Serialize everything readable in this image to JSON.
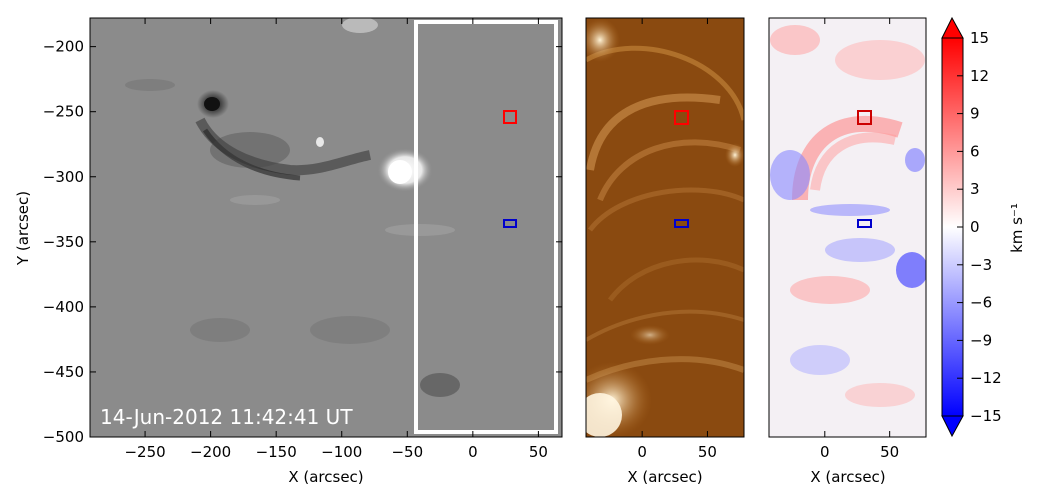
{
  "panel1": {
    "timestamp": "14-Jun-2012 11:42:41 UT",
    "xlabel": "X (arcsec)",
    "ylabel": "Y (arcsec)",
    "xticks": [
      "−250",
      "−200",
      "−150",
      "−100",
      "−50",
      "0",
      "50"
    ],
    "yticks": [
      "−200",
      "−250",
      "−300",
      "−350",
      "−400",
      "−450",
      "−500"
    ],
    "xrange": [
      -292,
      68
    ],
    "yrange": [
      -500,
      -178
    ]
  },
  "panel2": {
    "xlabel": "X (arcsec)",
    "xticks": [
      "0",
      "50"
    ],
    "xrange": [
      -43,
      78
    ]
  },
  "panel3": {
    "xlabel": "X (arcsec)",
    "xticks": [
      "0",
      "50"
    ],
    "xrange": [
      -43,
      78
    ]
  },
  "colorbar": {
    "label": "km s⁻¹",
    "ticks": [
      "15",
      "12",
      "9",
      "6",
      "3",
      "0",
      "−3",
      "−6",
      "−9",
      "−12",
      "−15"
    ],
    "range": [
      -15,
      15
    ],
    "colors": {
      "max": "#ff0000",
      "mid": "#ffffff",
      "min": "#0000ff"
    }
  },
  "markers": {
    "red_box_color": "#ff0000",
    "blue_box_color": "#0000cc",
    "highlight_box_color": "#ffffff"
  }
}
